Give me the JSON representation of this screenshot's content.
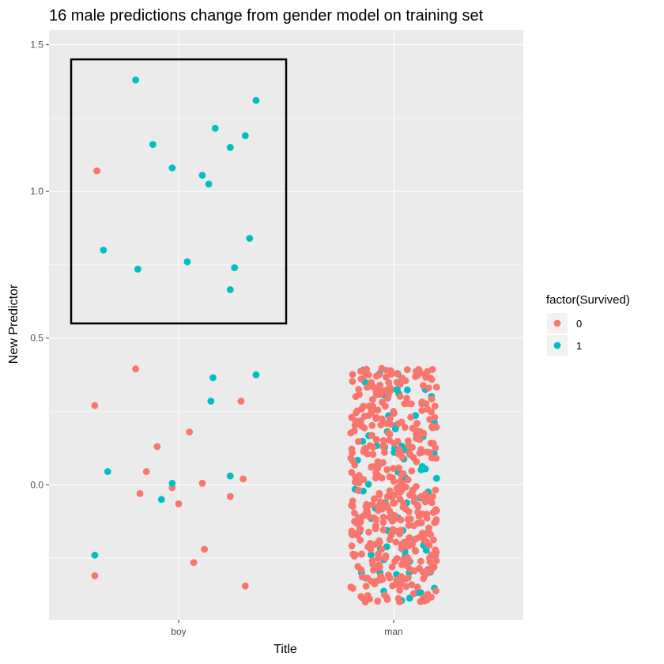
{
  "chart_data": {
    "type": "scatter",
    "title": "16 male predictions change from gender model on training set",
    "xlabel": "Title",
    "ylabel": "New Predictor",
    "categories": [
      "boy",
      "man"
    ],
    "y_ticks": [
      "0.0",
      "0.5",
      "1.0",
      "1.5"
    ],
    "y_tick_values": [
      0,
      0.5,
      1,
      1.5
    ],
    "ylim": [
      -0.46,
      1.55
    ],
    "grid": true,
    "legend": {
      "title": "factor(Survived)",
      "position": "right",
      "entries": [
        {
          "label": "0",
          "color": "#F8766D"
        },
        {
          "label": "1",
          "color": "#00BFC4"
        }
      ]
    },
    "highlight_box": {
      "x_from": -0.5,
      "x_to": 0.5,
      "y_from": 0.55,
      "y_to": 1.45
    },
    "series": [
      {
        "name": "0",
        "color": "#F8766D",
        "points": [
          {
            "x": -0.38,
            "y": 1.07
          },
          {
            "x": -0.2,
            "y": 0.395
          },
          {
            "x": -0.39,
            "y": 0.27
          },
          {
            "x": 0.29,
            "y": 0.285
          },
          {
            "x": 0.05,
            "y": 0.18
          },
          {
            "x": -0.1,
            "y": 0.13
          },
          {
            "x": -0.15,
            "y": 0.045
          },
          {
            "x": 0.3,
            "y": 0.02
          },
          {
            "x": 0.11,
            "y": 0.005
          },
          {
            "x": -0.03,
            "y": -0.01
          },
          {
            "x": -0.18,
            "y": -0.03
          },
          {
            "x": 0.24,
            "y": -0.04
          },
          {
            "x": 0.0,
            "y": -0.065
          },
          {
            "x": 0.12,
            "y": -0.22
          },
          {
            "x": 0.07,
            "y": -0.265
          },
          {
            "x": -0.39,
            "y": -0.31
          },
          {
            "x": 0.31,
            "y": -0.345
          }
        ]
      },
      {
        "name": "1",
        "color": "#00BFC4",
        "points": [
          {
            "x": -0.2,
            "y": 1.38
          },
          {
            "x": 0.36,
            "y": 1.31
          },
          {
            "x": 0.17,
            "y": 1.215
          },
          {
            "x": 0.31,
            "y": 1.19
          },
          {
            "x": -0.12,
            "y": 1.16
          },
          {
            "x": 0.24,
            "y": 1.15
          },
          {
            "x": -0.03,
            "y": 1.08
          },
          {
            "x": 0.11,
            "y": 1.055
          },
          {
            "x": 0.14,
            "y": 1.025
          },
          {
            "x": 0.33,
            "y": 0.84
          },
          {
            "x": -0.35,
            "y": 0.8
          },
          {
            "x": 0.04,
            "y": 0.76
          },
          {
            "x": -0.19,
            "y": 0.735
          },
          {
            "x": 0.26,
            "y": 0.74
          },
          {
            "x": 0.24,
            "y": 0.665
          },
          {
            "x": 0.16,
            "y": 0.365
          },
          {
            "x": 0.36,
            "y": 0.375
          },
          {
            "x": 0.15,
            "y": 0.285
          },
          {
            "x": -0.33,
            "y": 0.045
          },
          {
            "x": 0.24,
            "y": 0.03
          },
          {
            "x": -0.03,
            "y": 0.005
          },
          {
            "x": -0.08,
            "y": -0.05
          },
          {
            "x": -0.39,
            "y": -0.24
          }
        ]
      }
    ]
  }
}
